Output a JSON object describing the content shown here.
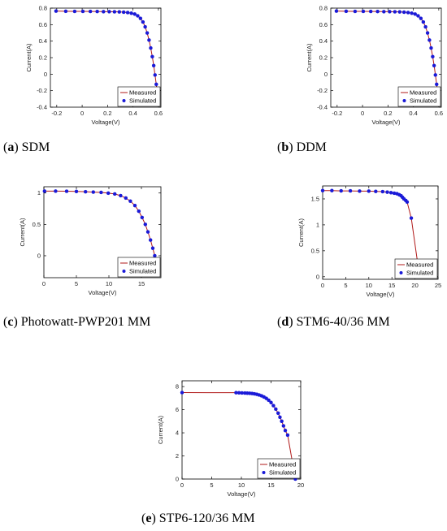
{
  "colors": {
    "measured": "#b01818",
    "simulated": "#1a1ad8",
    "axis": "#000000"
  },
  "chart_data": [
    {
      "id": "a",
      "type": "line",
      "caption_letter": "a",
      "caption_text": "SDM",
      "xlabel": "Voltage(V)",
      "ylabel": "Current(A)",
      "xlim": [
        -0.25,
        0.62
      ],
      "ylim": [
        -0.4,
        0.8
      ],
      "xticks": [
        -0.2,
        0,
        0.2,
        0.4,
        0.6
      ],
      "xtick_labels": [
        "-0.2",
        "0",
        "0.2",
        "0.4",
        "0.6"
      ],
      "yticks": [
        -0.4,
        -0.2,
        0,
        0.2,
        0.4,
        0.6,
        0.8
      ],
      "ytick_labels": [
        "-0.4",
        "-0.2",
        "0",
        "0.2",
        "0.4",
        "0.6",
        "0.8"
      ],
      "legend": [
        "Measured",
        "Simulated"
      ],
      "legend_position": "bottom-right",
      "series": [
        {
          "name": "Measured",
          "style": "line",
          "x": [
            -0.2057,
            -0.1291,
            -0.0588,
            0.0057,
            0.0646,
            0.1185,
            0.1678,
            0.2132,
            0.2545,
            0.2924,
            0.3269,
            0.3585,
            0.3873,
            0.4137,
            0.4373,
            0.459,
            0.4784,
            0.496,
            0.5119,
            0.5265,
            0.5398,
            0.5521,
            0.5633,
            0.5736,
            0.5833,
            0.59
          ],
          "y": [
            0.764,
            0.762,
            0.7605,
            0.7605,
            0.76,
            0.759,
            0.757,
            0.757,
            0.7555,
            0.754,
            0.7505,
            0.7465,
            0.7385,
            0.728,
            0.7065,
            0.6755,
            0.632,
            0.573,
            0.499,
            0.413,
            0.3165,
            0.212,
            0.1035,
            -0.01,
            -0.123,
            -0.21
          ]
        },
        {
          "name": "Simulated",
          "style": "marker",
          "x": [
            -0.2057,
            -0.1291,
            -0.0588,
            0.0057,
            0.0646,
            0.1185,
            0.1678,
            0.2132,
            0.2545,
            0.2924,
            0.3269,
            0.3585,
            0.3873,
            0.4137,
            0.4373,
            0.459,
            0.4784,
            0.496,
            0.5119,
            0.5265,
            0.5398,
            0.5521,
            0.5633,
            0.5736,
            0.5833,
            0.59
          ],
          "y": [
            0.764,
            0.762,
            0.7605,
            0.7605,
            0.76,
            0.759,
            0.757,
            0.757,
            0.7555,
            0.754,
            0.7505,
            0.7465,
            0.7385,
            0.728,
            0.7065,
            0.6755,
            0.632,
            0.573,
            0.499,
            0.413,
            0.3165,
            0.212,
            0.1035,
            -0.01,
            -0.123,
            -0.21
          ]
        }
      ]
    },
    {
      "id": "b",
      "type": "line",
      "caption_letter": "b",
      "caption_text": "DDM",
      "xlabel": "Voltage(V)",
      "ylabel": "Current(A)",
      "xlim": [
        -0.25,
        0.62
      ],
      "ylim": [
        -0.4,
        0.8
      ],
      "xticks": [
        -0.2,
        0,
        0.2,
        0.4,
        0.6
      ],
      "xtick_labels": [
        "-0.2",
        "0",
        "0.2",
        "0.4",
        "0.6"
      ],
      "yticks": [
        -0.4,
        -0.2,
        0,
        0.2,
        0.4,
        0.6,
        0.8
      ],
      "ytick_labels": [
        "-0.4",
        "-0.2",
        "0",
        "0.2",
        "0.4",
        "0.6",
        "0.8"
      ],
      "legend": [
        "Measured",
        "Simulated"
      ],
      "legend_position": "bottom-right",
      "series": [
        {
          "name": "Measured",
          "style": "line",
          "x": [
            -0.2057,
            -0.1291,
            -0.0588,
            0.0057,
            0.0646,
            0.1185,
            0.1678,
            0.2132,
            0.2545,
            0.2924,
            0.3269,
            0.3585,
            0.3873,
            0.4137,
            0.4373,
            0.459,
            0.4784,
            0.496,
            0.5119,
            0.5265,
            0.5398,
            0.5521,
            0.5633,
            0.5736,
            0.5833,
            0.59
          ],
          "y": [
            0.764,
            0.762,
            0.7605,
            0.7605,
            0.76,
            0.759,
            0.757,
            0.757,
            0.7555,
            0.754,
            0.7505,
            0.7465,
            0.7385,
            0.728,
            0.7065,
            0.6755,
            0.632,
            0.573,
            0.499,
            0.413,
            0.3165,
            0.212,
            0.1035,
            -0.01,
            -0.123,
            -0.21
          ]
        },
        {
          "name": "Simulated",
          "style": "marker",
          "x": [
            -0.2057,
            -0.1291,
            -0.0588,
            0.0057,
            0.0646,
            0.1185,
            0.1678,
            0.2132,
            0.2545,
            0.2924,
            0.3269,
            0.3585,
            0.3873,
            0.4137,
            0.4373,
            0.459,
            0.4784,
            0.496,
            0.5119,
            0.5265,
            0.5398,
            0.5521,
            0.5633,
            0.5736,
            0.5833,
            0.59
          ],
          "y": [
            0.764,
            0.762,
            0.7605,
            0.7605,
            0.76,
            0.759,
            0.757,
            0.757,
            0.7555,
            0.754,
            0.7505,
            0.7465,
            0.7385,
            0.728,
            0.7065,
            0.6755,
            0.632,
            0.573,
            0.499,
            0.413,
            0.3165,
            0.212,
            0.1035,
            -0.01,
            -0.123,
            -0.21
          ]
        }
      ]
    },
    {
      "id": "c",
      "type": "line",
      "caption_letter": "c",
      "caption_text": "Photowatt-PWP201 MM",
      "xlabel": "Voltage(V)",
      "ylabel": "Current(A)",
      "xlim": [
        0,
        18
      ],
      "ylim": [
        -0.35,
        1.1
      ],
      "xticks": [
        0,
        5,
        10,
        15
      ],
      "xtick_labels": [
        "0",
        "5",
        "10",
        "15"
      ],
      "yticks": [
        0,
        0.5,
        1
      ],
      "ytick_labels": [
        "0",
        "0.5",
        "1"
      ],
      "legend": [
        "Measured",
        "Simulated"
      ],
      "legend_position": "bottom-right",
      "series": [
        {
          "name": "Measured",
          "style": "line",
          "x": [
            0.1,
            1.8,
            3.5,
            5.0,
            6.4,
            7.6,
            8.8,
            9.9,
            10.9,
            11.8,
            12.6,
            13.3,
            14.0,
            14.6,
            15.1,
            15.6,
            16.0,
            16.4,
            16.75,
            17.05,
            17.3,
            17.45
          ],
          "y": [
            1.03,
            1.03,
            1.028,
            1.025,
            1.02,
            1.015,
            1.01,
            0.998,
            0.985,
            0.958,
            0.92,
            0.87,
            0.8,
            0.71,
            0.61,
            0.5,
            0.38,
            0.25,
            0.12,
            0.0,
            -0.13,
            -0.28
          ]
        },
        {
          "name": "Simulated",
          "style": "marker",
          "x": [
            0.1,
            1.8,
            3.5,
            5.0,
            6.4,
            7.6,
            8.8,
            9.9,
            10.9,
            11.8,
            12.6,
            13.3,
            14.0,
            14.6,
            15.1,
            15.6,
            16.0,
            16.4,
            16.75,
            17.05,
            17.3,
            17.45
          ],
          "y": [
            1.03,
            1.03,
            1.028,
            1.025,
            1.02,
            1.015,
            1.01,
            0.998,
            0.985,
            0.958,
            0.92,
            0.87,
            0.8,
            0.71,
            0.61,
            0.5,
            0.38,
            0.25,
            0.12,
            0.0,
            -0.13,
            -0.28
          ]
        }
      ]
    },
    {
      "id": "d",
      "type": "line",
      "caption_letter": "d",
      "caption_text": "STM6-40/36 MM",
      "xlabel": "Voltage(V)",
      "ylabel": "Current(A)",
      "xlim": [
        0,
        25
      ],
      "ylim": [
        -0.05,
        1.75
      ],
      "xticks": [
        0,
        5,
        10,
        15,
        20,
        25
      ],
      "xtick_labels": [
        "0",
        "5",
        "10",
        "15",
        "20",
        "25"
      ],
      "yticks": [
        0,
        0.5,
        1,
        1.5
      ],
      "ytick_labels": [
        "0",
        "0.5",
        "1",
        "1.5"
      ],
      "legend": [
        "Measured",
        "Simulated"
      ],
      "legend_position": "bottom-right",
      "series": [
        {
          "name": "Measured",
          "style": "line",
          "x": [
            0,
            2.0,
            4.0,
            6.0,
            8.0,
            10.0,
            11.5,
            13.0,
            14.0,
            14.8,
            15.5,
            16.1,
            16.6,
            17.0,
            17.3,
            17.6,
            18.0,
            18.3,
            19.2,
            21.0
          ],
          "y": [
            1.66,
            1.66,
            1.655,
            1.655,
            1.65,
            1.65,
            1.645,
            1.64,
            1.63,
            1.62,
            1.61,
            1.6,
            1.58,
            1.56,
            1.53,
            1.5,
            1.47,
            1.44,
            1.13,
            0.0
          ]
        },
        {
          "name": "Simulated",
          "style": "marker",
          "x": [
            0,
            2.0,
            4.0,
            6.0,
            8.0,
            10.0,
            11.5,
            13.0,
            14.0,
            14.8,
            15.5,
            16.1,
            16.6,
            17.0,
            17.3,
            17.6,
            18.0,
            18.3,
            19.2
          ],
          "y": [
            1.66,
            1.66,
            1.655,
            1.655,
            1.65,
            1.65,
            1.645,
            1.64,
            1.63,
            1.62,
            1.61,
            1.6,
            1.58,
            1.56,
            1.53,
            1.5,
            1.47,
            1.44,
            1.13
          ]
        }
      ]
    },
    {
      "id": "e",
      "type": "line",
      "caption_letter": "e",
      "caption_text": "STP6-120/36 MM",
      "xlabel": "Voltage(V)",
      "ylabel": "Current(A)",
      "xlim": [
        0,
        20
      ],
      "ylim": [
        0,
        8.5
      ],
      "xticks": [
        0,
        5,
        10,
        15,
        20
      ],
      "xtick_labels": [
        "0",
        "5",
        "10",
        "15",
        "20"
      ],
      "yticks": [
        0,
        2,
        4,
        6,
        8
      ],
      "ytick_labels": [
        "0",
        "2",
        "4",
        "6",
        "8"
      ],
      "legend": [
        "Measured",
        "Simulated"
      ],
      "legend_position": "bottom-right",
      "series": [
        {
          "name": "Measured",
          "style": "line",
          "x": [
            0.0,
            9.1,
            9.6,
            10.1,
            10.6,
            11.0,
            11.4,
            11.8,
            12.2,
            12.6,
            13.0,
            13.4,
            13.8,
            14.2,
            14.6,
            15.0,
            15.4,
            15.8,
            16.2,
            16.5,
            16.8,
            17.1,
            17.4,
            17.8,
            19.1,
            19.21
          ],
          "y": [
            7.48,
            7.47,
            7.46,
            7.45,
            7.44,
            7.43,
            7.42,
            7.4,
            7.37,
            7.33,
            7.27,
            7.2,
            7.1,
            6.98,
            6.82,
            6.62,
            6.35,
            6.05,
            5.7,
            5.35,
            5.0,
            4.6,
            4.2,
            3.8,
            0.0,
            0.0
          ]
        },
        {
          "name": "Simulated",
          "style": "marker",
          "x": [
            0.0,
            9.1,
            9.6,
            10.1,
            10.6,
            11.0,
            11.4,
            11.8,
            12.2,
            12.6,
            13.0,
            13.4,
            13.8,
            14.2,
            14.6,
            15.0,
            15.4,
            15.8,
            16.2,
            16.5,
            16.8,
            17.1,
            17.4,
            17.8,
            19.1
          ],
          "y": [
            7.48,
            7.47,
            7.46,
            7.45,
            7.44,
            7.43,
            7.42,
            7.4,
            7.37,
            7.33,
            7.27,
            7.2,
            7.1,
            6.98,
            6.82,
            6.62,
            6.35,
            6.05,
            5.7,
            5.35,
            5.0,
            4.6,
            4.2,
            3.8,
            0.0
          ]
        }
      ]
    }
  ]
}
